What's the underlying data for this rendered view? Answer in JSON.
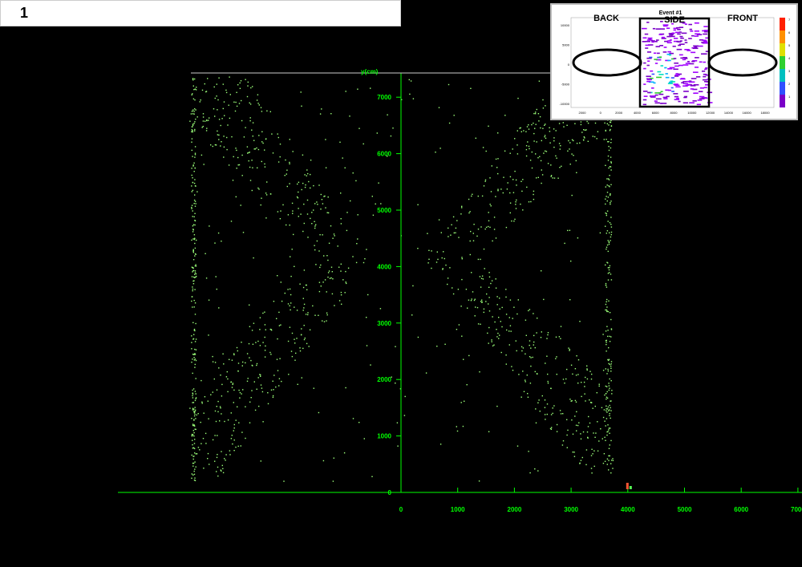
{
  "page_label": "1",
  "main_plot": {
    "y_axis_label": "y(cm)",
    "axis_color": "#00ff00",
    "point_color": "#9cff7a"
  },
  "inset": {
    "title": "Event #1",
    "labels": {
      "back": "BACK",
      "side": "SIDE",
      "front": "FRONT"
    },
    "x_ticks": [
      "2000",
      "0",
      "2000",
      "4000",
      "6000",
      "8000",
      "10000",
      "12000",
      "14000",
      "16000",
      "18000"
    ],
    "y_ticks": [
      "10000",
      "5000",
      "0",
      "-5000",
      "-10000"
    ],
    "colorbar_ticks": [
      "7",
      "6",
      "5",
      "4",
      "3",
      "2",
      "1"
    ]
  },
  "chart_data": {
    "type": "scatter",
    "title": "",
    "xlabel": "",
    "ylabel": "y(cm)",
    "x_ticks": [
      0,
      1000,
      2000,
      3000,
      4000,
      5000,
      6000,
      7000
    ],
    "y_ticks": [
      0,
      1000,
      2000,
      3000,
      4000,
      5000,
      6000,
      7000
    ],
    "xlim": [
      -5000,
      7000
    ],
    "ylim": [
      0,
      7400
    ],
    "grid": false,
    "series": [
      {
        "description_only": true,
        "values": []
      }
    ]
  }
}
